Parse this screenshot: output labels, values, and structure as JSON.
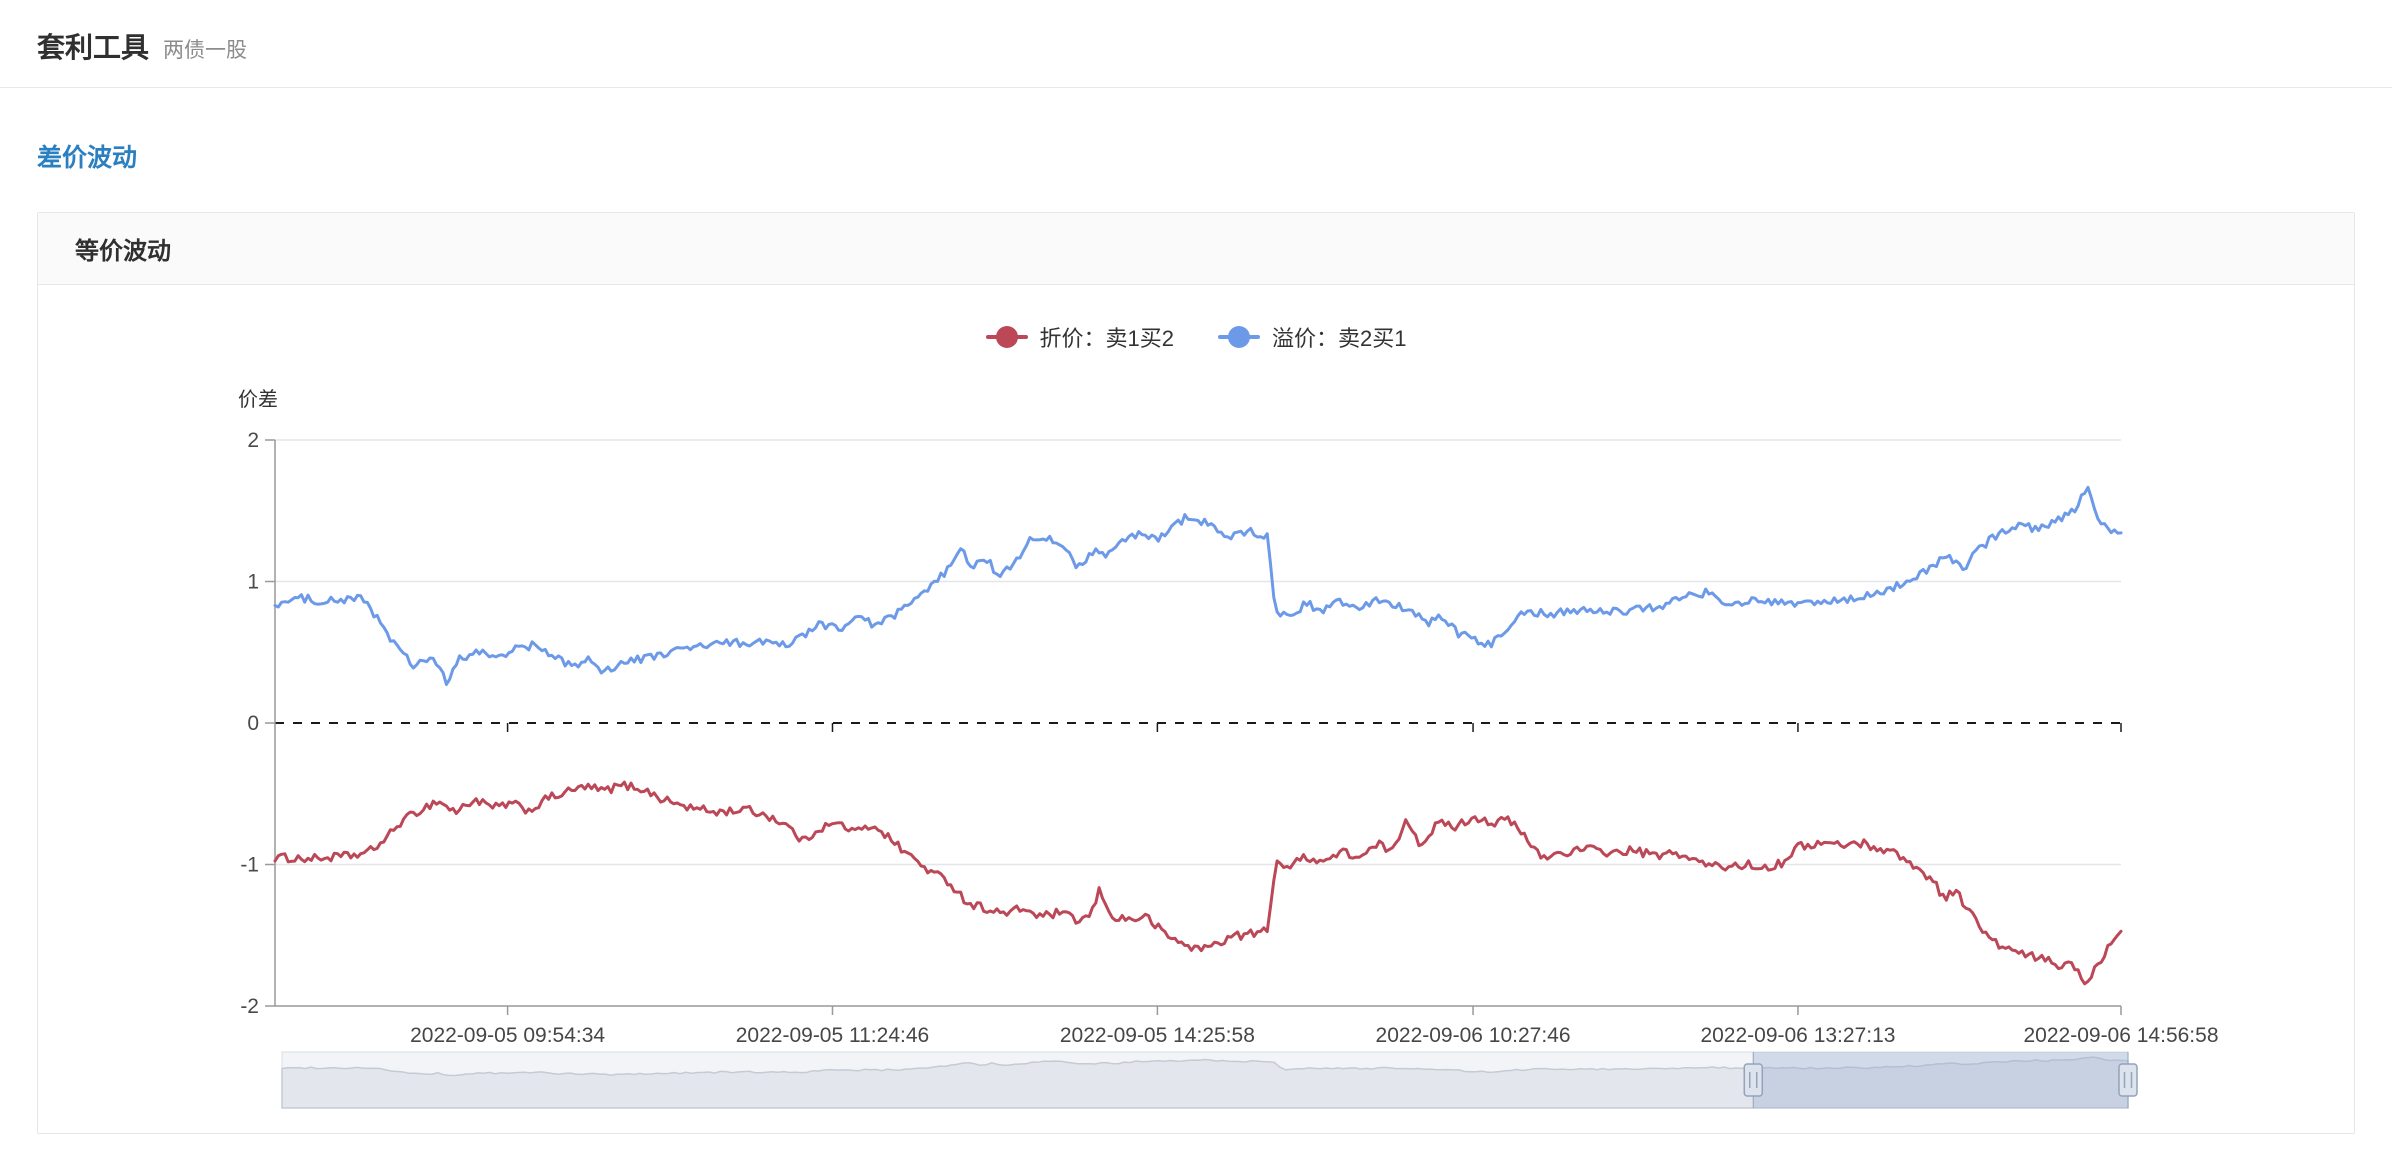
{
  "header": {
    "title": "套利工具",
    "subtitle": "两债一股"
  },
  "nav": {
    "link_label": "差价波动"
  },
  "panel": {
    "title": "等价波动"
  },
  "chart_data": {
    "type": "line",
    "title": "",
    "xlabel": "",
    "ylabel": "价差",
    "ylim": [
      -2,
      2
    ],
    "grid": true,
    "legend_position": "top",
    "zero_line": 0,
    "style": {
      "axis_line": "#999999",
      "axis_label": "#4a4a4a",
      "grid_line": "#e4e6ea",
      "zero_line_color": "#1a1a1a",
      "slider_bg": "#f2f4f7",
      "slider_border": "#d8dce2",
      "slider_shadow_fill": "#e3e7ed",
      "slider_shadow_line": "#c5cbd5",
      "slider_window_fill": "rgba(145,170,205,0.35)",
      "slider_handle_fill": "#dde3ec",
      "slider_handle_stroke": "#93a3ba"
    },
    "y_ticks": [
      {
        "v": 2,
        "label": "2"
      },
      {
        "v": 1,
        "label": "1"
      },
      {
        "v": 0,
        "label": "0"
      },
      {
        "v": -1,
        "label": "-1"
      },
      {
        "v": -2,
        "label": "-2"
      }
    ],
    "x_ticks": [
      {
        "pos": 0.126,
        "label": "2022-09-05 09:54:34"
      },
      {
        "pos": 0.302,
        "label": "2022-09-05 11:24:46"
      },
      {
        "pos": 0.478,
        "label": "2022-09-05 14:25:58"
      },
      {
        "pos": 0.649,
        "label": "2022-09-06 10:27:46"
      },
      {
        "pos": 0.825,
        "label": "2022-09-06 13:27:13"
      },
      {
        "pos": 1.0,
        "label": "2022-09-06 14:56:58"
      }
    ],
    "datazoom": {
      "window": [
        0.797,
        1.0
      ]
    },
    "series": [
      {
        "name": "折价：卖1买2",
        "color": "#bb4757",
        "noise": 0.06,
        "anchors": [
          [
            0.0,
            -0.95
          ],
          [
            0.02,
            -0.96
          ],
          [
            0.04,
            -0.94
          ],
          [
            0.05,
            -0.92
          ],
          [
            0.06,
            -0.82
          ],
          [
            0.068,
            -0.7
          ],
          [
            0.078,
            -0.62
          ],
          [
            0.088,
            -0.55
          ],
          [
            0.098,
            -0.63
          ],
          [
            0.108,
            -0.54
          ],
          [
            0.118,
            -0.6
          ],
          [
            0.128,
            -0.57
          ],
          [
            0.138,
            -0.62
          ],
          [
            0.148,
            -0.53
          ],
          [
            0.158,
            -0.49
          ],
          [
            0.168,
            -0.45
          ],
          [
            0.178,
            -0.48
          ],
          [
            0.188,
            -0.44
          ],
          [
            0.198,
            -0.46
          ],
          [
            0.21,
            -0.54
          ],
          [
            0.225,
            -0.6
          ],
          [
            0.24,
            -0.63
          ],
          [
            0.255,
            -0.61
          ],
          [
            0.268,
            -0.66
          ],
          [
            0.278,
            -0.73
          ],
          [
            0.286,
            -0.84
          ],
          [
            0.295,
            -0.74
          ],
          [
            0.305,
            -0.71
          ],
          [
            0.315,
            -0.77
          ],
          [
            0.325,
            -0.72
          ],
          [
            0.335,
            -0.84
          ],
          [
            0.345,
            -0.95
          ],
          [
            0.355,
            -1.05
          ],
          [
            0.365,
            -1.12
          ],
          [
            0.375,
            -1.27
          ],
          [
            0.385,
            -1.31
          ],
          [
            0.395,
            -1.35
          ],
          [
            0.405,
            -1.31
          ],
          [
            0.415,
            -1.37
          ],
          [
            0.425,
            -1.34
          ],
          [
            0.435,
            -1.4
          ],
          [
            0.442,
            -1.36
          ],
          [
            0.447,
            -1.17
          ],
          [
            0.452,
            -1.36
          ],
          [
            0.462,
            -1.39
          ],
          [
            0.472,
            -1.37
          ],
          [
            0.482,
            -1.49
          ],
          [
            0.49,
            -1.55
          ],
          [
            0.5,
            -1.6
          ],
          [
            0.508,
            -1.57
          ],
          [
            0.518,
            -1.51
          ],
          [
            0.528,
            -1.49
          ],
          [
            0.538,
            -1.47
          ],
          [
            0.542,
            -0.97
          ],
          [
            0.55,
            -1.02
          ],
          [
            0.558,
            -0.94
          ],
          [
            0.568,
            -0.98
          ],
          [
            0.578,
            -0.91
          ],
          [
            0.588,
            -0.95
          ],
          [
            0.598,
            -0.86
          ],
          [
            0.606,
            -0.91
          ],
          [
            0.613,
            -0.66
          ],
          [
            0.62,
            -0.86
          ],
          [
            0.63,
            -0.71
          ],
          [
            0.64,
            -0.73
          ],
          [
            0.65,
            -0.66
          ],
          [
            0.66,
            -0.71
          ],
          [
            0.668,
            -0.68
          ],
          [
            0.676,
            -0.79
          ],
          [
            0.686,
            -0.95
          ],
          [
            0.7,
            -0.91
          ],
          [
            0.712,
            -0.89
          ],
          [
            0.724,
            -0.92
          ],
          [
            0.736,
            -0.9
          ],
          [
            0.748,
            -0.94
          ],
          [
            0.76,
            -0.92
          ],
          [
            0.772,
            -0.99
          ],
          [
            0.784,
            -1.02
          ],
          [
            0.796,
            -1.0
          ],
          [
            0.808,
            -1.02
          ],
          [
            0.816,
            -0.99
          ],
          [
            0.824,
            -0.88
          ],
          [
            0.836,
            -0.85
          ],
          [
            0.848,
            -0.86
          ],
          [
            0.86,
            -0.85
          ],
          [
            0.87,
            -0.89
          ],
          [
            0.88,
            -0.93
          ],
          [
            0.89,
            -1.04
          ],
          [
            0.898,
            -1.1
          ],
          [
            0.904,
            -1.24
          ],
          [
            0.91,
            -1.18
          ],
          [
            0.918,
            -1.33
          ],
          [
            0.928,
            -1.52
          ],
          [
            0.938,
            -1.6
          ],
          [
            0.948,
            -1.64
          ],
          [
            0.958,
            -1.67
          ],
          [
            0.968,
            -1.72
          ],
          [
            0.974,
            -1.69
          ],
          [
            0.98,
            -1.84
          ],
          [
            0.986,
            -1.74
          ],
          [
            0.992,
            -1.6
          ],
          [
            1.0,
            -1.45
          ]
        ]
      },
      {
        "name": "溢价：卖2买1",
        "color": "#6d9ae8",
        "noise": 0.06,
        "anchors": [
          [
            0.0,
            0.84
          ],
          [
            0.015,
            0.88
          ],
          [
            0.03,
            0.86
          ],
          [
            0.045,
            0.88
          ],
          [
            0.05,
            0.85
          ],
          [
            0.055,
            0.75
          ],
          [
            0.065,
            0.55
          ],
          [
            0.075,
            0.4
          ],
          [
            0.085,
            0.47
          ],
          [
            0.093,
            0.28
          ],
          [
            0.1,
            0.45
          ],
          [
            0.11,
            0.5
          ],
          [
            0.12,
            0.47
          ],
          [
            0.13,
            0.52
          ],
          [
            0.14,
            0.55
          ],
          [
            0.15,
            0.47
          ],
          [
            0.16,
            0.41
          ],
          [
            0.17,
            0.44
          ],
          [
            0.178,
            0.37
          ],
          [
            0.19,
            0.43
          ],
          [
            0.205,
            0.47
          ],
          [
            0.22,
            0.52
          ],
          [
            0.24,
            0.56
          ],
          [
            0.26,
            0.57
          ],
          [
            0.275,
            0.55
          ],
          [
            0.285,
            0.6
          ],
          [
            0.295,
            0.7
          ],
          [
            0.305,
            0.67
          ],
          [
            0.315,
            0.73
          ],
          [
            0.325,
            0.7
          ],
          [
            0.335,
            0.75
          ],
          [
            0.345,
            0.85
          ],
          [
            0.355,
            0.95
          ],
          [
            0.365,
            1.1
          ],
          [
            0.372,
            1.22
          ],
          [
            0.378,
            1.08
          ],
          [
            0.385,
            1.18
          ],
          [
            0.392,
            1.02
          ],
          [
            0.4,
            1.12
          ],
          [
            0.408,
            1.28
          ],
          [
            0.418,
            1.3
          ],
          [
            0.428,
            1.25
          ],
          [
            0.435,
            1.1
          ],
          [
            0.443,
            1.22
          ],
          [
            0.45,
            1.18
          ],
          [
            0.458,
            1.28
          ],
          [
            0.468,
            1.33
          ],
          [
            0.478,
            1.3
          ],
          [
            0.488,
            1.4
          ],
          [
            0.495,
            1.47
          ],
          [
            0.502,
            1.43
          ],
          [
            0.51,
            1.36
          ],
          [
            0.52,
            1.32
          ],
          [
            0.53,
            1.35
          ],
          [
            0.538,
            1.31
          ],
          [
            0.542,
            0.78
          ],
          [
            0.55,
            0.76
          ],
          [
            0.558,
            0.84
          ],
          [
            0.568,
            0.8
          ],
          [
            0.578,
            0.86
          ],
          [
            0.588,
            0.82
          ],
          [
            0.598,
            0.88
          ],
          [
            0.606,
            0.83
          ],
          [
            0.615,
            0.8
          ],
          [
            0.625,
            0.7
          ],
          [
            0.632,
            0.75
          ],
          [
            0.64,
            0.64
          ],
          [
            0.65,
            0.58
          ],
          [
            0.658,
            0.55
          ],
          [
            0.666,
            0.66
          ],
          [
            0.676,
            0.79
          ],
          [
            0.69,
            0.77
          ],
          [
            0.705,
            0.8
          ],
          [
            0.72,
            0.78
          ],
          [
            0.735,
            0.8
          ],
          [
            0.75,
            0.82
          ],
          [
            0.762,
            0.89
          ],
          [
            0.775,
            0.92
          ],
          [
            0.787,
            0.85
          ],
          [
            0.8,
            0.86
          ],
          [
            0.815,
            0.84
          ],
          [
            0.83,
            0.85
          ],
          [
            0.845,
            0.86
          ],
          [
            0.86,
            0.88
          ],
          [
            0.872,
            0.94
          ],
          [
            0.885,
            1.0
          ],
          [
            0.895,
            1.08
          ],
          [
            0.905,
            1.18
          ],
          [
            0.915,
            1.1
          ],
          [
            0.925,
            1.25
          ],
          [
            0.935,
            1.35
          ],
          [
            0.945,
            1.4
          ],
          [
            0.955,
            1.37
          ],
          [
            0.965,
            1.44
          ],
          [
            0.975,
            1.5
          ],
          [
            0.982,
            1.68
          ],
          [
            0.987,
            1.42
          ],
          [
            0.993,
            1.38
          ],
          [
            1.0,
            1.35
          ]
        ]
      }
    ]
  }
}
